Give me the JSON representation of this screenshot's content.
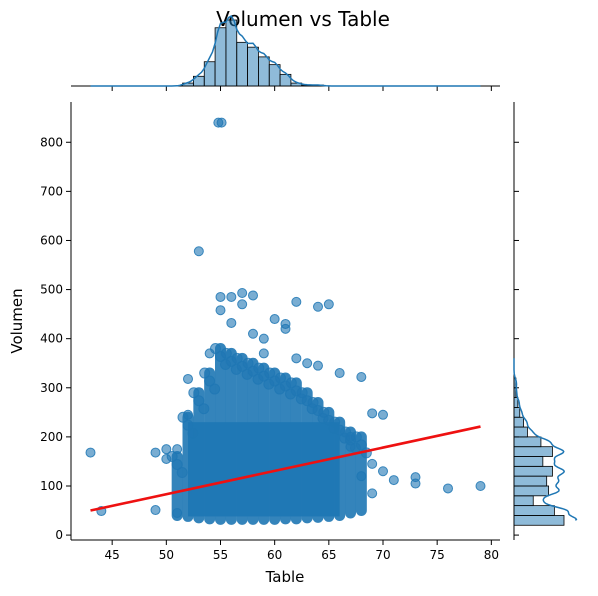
{
  "chart_data": {
    "type": "scatter",
    "title": "Volumen vs Table",
    "xlabel": "Table",
    "ylabel": "Volumen",
    "xlim": [
      41.2,
      80.8
    ],
    "ylim": [
      -10,
      882
    ],
    "x_ticks": [
      "45",
      "50",
      "55",
      "60",
      "65",
      "70",
      "75",
      "80"
    ],
    "y_ticks": [
      "0",
      "100",
      "200",
      "300",
      "400",
      "500",
      "600",
      "700",
      "800"
    ],
    "grid": false,
    "legend": "none",
    "point_color": "#1f77b4",
    "regression_color": "#ee1111",
    "regression_line": {
      "x": [
        43,
        79
      ],
      "y": [
        50,
        221
      ]
    },
    "outliers": [
      {
        "x": 43,
        "y": 168
      },
      {
        "x": 44,
        "y": 49
      },
      {
        "x": 49,
        "y": 168
      },
      {
        "x": 49,
        "y": 51
      },
      {
        "x": 50,
        "y": 175
      },
      {
        "x": 50,
        "y": 155
      },
      {
        "x": 53,
        "y": 578
      },
      {
        "x": 54.8,
        "y": 840
      },
      {
        "x": 55.1,
        "y": 840
      },
      {
        "x": 55,
        "y": 485
      },
      {
        "x": 55,
        "y": 458
      },
      {
        "x": 56,
        "y": 485
      },
      {
        "x": 56,
        "y": 432
      },
      {
        "x": 57,
        "y": 493
      },
      {
        "x": 58,
        "y": 488
      },
      {
        "x": 57,
        "y": 470
      },
      {
        "x": 58,
        "y": 410
      },
      {
        "x": 59,
        "y": 400
      },
      {
        "x": 60,
        "y": 440
      },
      {
        "x": 61,
        "y": 430
      },
      {
        "x": 61,
        "y": 420
      },
      {
        "x": 62,
        "y": 475
      },
      {
        "x": 64,
        "y": 465
      },
      {
        "x": 65,
        "y": 470
      },
      {
        "x": 64,
        "y": 345
      },
      {
        "x": 66,
        "y": 330
      },
      {
        "x": 68,
        "y": 322
      },
      {
        "x": 52,
        "y": 318
      },
      {
        "x": 69,
        "y": 248
      },
      {
        "x": 70,
        "y": 245
      },
      {
        "x": 69,
        "y": 145
      },
      {
        "x": 70,
        "y": 130
      },
      {
        "x": 71,
        "y": 112
      },
      {
        "x": 73,
        "y": 118
      },
      {
        "x": 73,
        "y": 105
      },
      {
        "x": 76,
        "y": 95
      },
      {
        "x": 79,
        "y": 100
      },
      {
        "x": 69,
        "y": 85
      },
      {
        "x": 68,
        "y": 120
      },
      {
        "x": 67,
        "y": 200
      },
      {
        "x": 67,
        "y": 180
      },
      {
        "x": 51,
        "y": 175
      },
      {
        "x": 51,
        "y": 45
      },
      {
        "x": 52,
        "y": 245
      },
      {
        "x": 54,
        "y": 370
      },
      {
        "x": 59,
        "y": 370
      },
      {
        "x": 63,
        "y": 350
      },
      {
        "x": 62,
        "y": 360
      }
    ],
    "dense_columns": [
      {
        "x": 51,
        "y": [
          40,
          160
        ]
      },
      {
        "x": 52,
        "y": [
          38,
          240
        ]
      },
      {
        "x": 53,
        "y": [
          35,
          290
        ]
      },
      {
        "x": 54,
        "y": [
          33,
          330
        ]
      },
      {
        "x": 55,
        "y": [
          32,
          380
        ]
      },
      {
        "x": 56,
        "y": [
          32,
          370
        ]
      },
      {
        "x": 57,
        "y": [
          32,
          360
        ]
      },
      {
        "x": 58,
        "y": [
          32,
          350
        ]
      },
      {
        "x": 59,
        "y": [
          32,
          340
        ]
      },
      {
        "x": 60,
        "y": [
          32,
          330
        ]
      },
      {
        "x": 61,
        "y": [
          33,
          320
        ]
      },
      {
        "x": 62,
        "y": [
          33,
          310
        ]
      },
      {
        "x": 63,
        "y": [
          35,
          290
        ]
      },
      {
        "x": 64,
        "y": [
          36,
          270
        ]
      },
      {
        "x": 65,
        "y": [
          38,
          250
        ]
      },
      {
        "x": 66,
        "y": [
          40,
          230
        ]
      },
      {
        "x": 67,
        "y": [
          45,
          210
        ]
      },
      {
        "x": 68,
        "y": [
          50,
          200
        ]
      }
    ],
    "marginal_x": {
      "bins": [
        52,
        53,
        54,
        55,
        56,
        57,
        58,
        59,
        60,
        61,
        62,
        63,
        64,
        65
      ],
      "counts": [
        3,
        10,
        25,
        60,
        68,
        45,
        40,
        30,
        22,
        12,
        3,
        1,
        1,
        0
      ]
    },
    "marginal_y": {
      "bins": [
        30,
        50,
        70,
        90,
        110,
        130,
        150,
        170,
        190,
        210,
        230,
        250,
        270,
        290,
        310,
        330,
        350
      ],
      "counts": [
        26,
        21,
        10,
        18,
        17,
        20,
        15,
        20,
        14,
        7,
        5,
        3,
        2,
        1,
        1,
        0,
        0
      ]
    }
  }
}
